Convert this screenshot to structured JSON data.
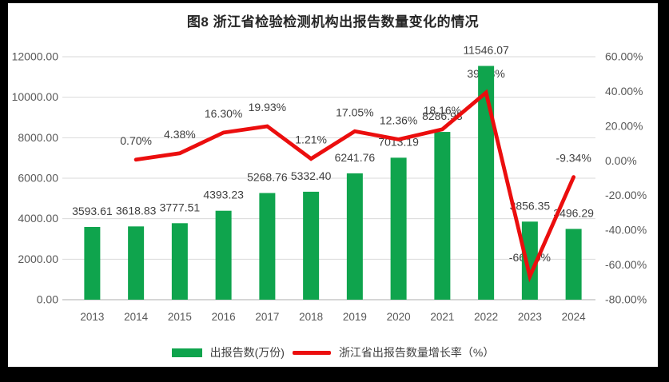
{
  "frame": {
    "background": "#000000",
    "canvas_background": "#FFFFFF"
  },
  "chart": {
    "title": "图8 浙江省检验检测机构出报告数量变化的情况",
    "legend": {
      "bar": "出报告数(万份)",
      "line": "浙江省出报告数量增长率（%）"
    }
  },
  "colors": {
    "bar": "#0FA44D",
    "line": "#EB0E0E",
    "grid": "#D9D9D9",
    "axis_line": "#C9C9C9",
    "tick_text": "#595959",
    "data_label": "#404040",
    "title_text": "#262626"
  },
  "chart_data": {
    "type": "combo (bar + line)",
    "title": "图8 浙江省检验检测机构出报告数量变化的情况",
    "categories": [
      "2013",
      "2014",
      "2015",
      "2016",
      "2017",
      "2018",
      "2019",
      "2020",
      "2021",
      "2022",
      "2023",
      "2024"
    ],
    "series": [
      {
        "name": "出报告数(万份)",
        "type": "bar",
        "axis": "left",
        "color": "#0FA44D",
        "values": [
          3593.61,
          3618.83,
          3777.51,
          4393.23,
          5268.76,
          5332.4,
          6241.76,
          7013.19,
          8286.93,
          11546.07,
          3856.35,
          3496.29
        ],
        "labels": [
          "3593.61",
          "3618.83",
          "3777.51",
          "4393.23",
          "5268.76",
          "5332.40",
          "6241.76",
          "7013.19",
          "8286.93",
          "11546.07",
          "3856.35",
          "3496.29"
        ]
      },
      {
        "name": "浙江省出报告数量增长率（%）",
        "type": "line",
        "axis": "right",
        "color": "#EB0E0E",
        "values": [
          null,
          0.7,
          4.38,
          16.3,
          19.93,
          1.21,
          17.05,
          12.36,
          18.16,
          39.33,
          -66.6,
          -9.34
        ],
        "labels": [
          "",
          "0.70%",
          "4.38%",
          "16.30%",
          "19.93%",
          "1.21%",
          "17.05%",
          "12.36%",
          "18.16%",
          "39.33%",
          "-66.60%",
          "-9.34%"
        ]
      }
    ],
    "left_axis": {
      "min": 0,
      "max": 12000,
      "step": 2000,
      "tick_labels": [
        "0.00",
        "2000.00",
        "4000.00",
        "6000.00",
        "8000.00",
        "10000.00",
        "12000.00"
      ]
    },
    "right_axis": {
      "min": -80,
      "max": 60,
      "step": 20,
      "tick_labels_top_down": [
        "60.00%",
        "40.00%",
        "20.00%",
        "0.00%",
        "-20.00%",
        "-40.00%",
        "-60.00%",
        "-80.00%"
      ]
    },
    "grid": true,
    "legend_position": "bottom"
  }
}
